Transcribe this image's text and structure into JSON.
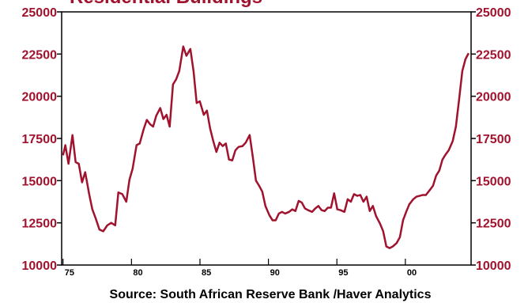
{
  "chart_data": {
    "type": "line",
    "title": "Residential Buildings",
    "source": "Source:  South African Reserve Bank /Haver Analytics",
    "color": "#a0122d",
    "xlim": [
      1974.9,
      2004.8
    ],
    "xticks": [
      {
        "value": 1975,
        "label": "75"
      },
      {
        "value": 1980,
        "label": "80"
      },
      {
        "value": 1985,
        "label": "85"
      },
      {
        "value": 1990,
        "label": "90"
      },
      {
        "value": 1995,
        "label": "95"
      },
      {
        "value": 2000,
        "label": "00"
      }
    ],
    "ylim": [
      10000,
      25000
    ],
    "yticks": [
      10000,
      12500,
      15000,
      17500,
      20000,
      22500,
      25000
    ],
    "right_axis": true,
    "x": [
      1975.0,
      1975.17,
      1975.4,
      1975.69,
      1975.92,
      1976.15,
      1976.39,
      1976.62,
      1976.91,
      1977.14,
      1977.37,
      1977.66,
      1977.94,
      1978.23,
      1978.52,
      1978.81,
      1979.04,
      1979.33,
      1979.62,
      1979.85,
      1980.08,
      1980.37,
      1980.6,
      1980.89,
      1981.12,
      1981.35,
      1981.58,
      1981.81,
      1982.1,
      1982.33,
      1982.56,
      1982.79,
      1983.03,
      1983.26,
      1983.49,
      1983.78,
      1984.01,
      1984.3,
      1984.53,
      1984.76,
      1984.99,
      1985.28,
      1985.51,
      1985.74,
      1985.97,
      1986.2,
      1986.43,
      1986.66,
      1986.89,
      1987.12,
      1987.36,
      1987.59,
      1987.82,
      1988.11,
      1988.34,
      1988.63,
      1988.86,
      1989.09,
      1989.32,
      1989.55,
      1989.78,
      1990.07,
      1990.3,
      1990.53,
      1990.76,
      1990.99,
      1991.22,
      1991.51,
      1991.74,
      1991.97,
      1992.21,
      1992.44,
      1992.67,
      1992.9,
      1993.19,
      1993.42,
      1993.65,
      1993.88,
      1994.11,
      1994.34,
      1994.57,
      1994.8,
      1995.03,
      1995.27,
      1995.55,
      1995.79,
      1996.02,
      1996.25,
      1996.48,
      1996.71,
      1996.94,
      1997.17,
      1997.4,
      1997.63,
      1997.86,
      1998.15,
      1998.38,
      1998.61,
      1998.85,
      1999.08,
      1999.36,
      1999.6,
      1999.83,
      2000.06,
      2000.29,
      2000.58,
      2000.81,
      2001.04,
      2001.27,
      2001.5,
      2001.79,
      2002.02,
      2002.25,
      2002.48,
      2002.71,
      2002.94,
      2003.17,
      2003.46,
      2003.69,
      2003.93,
      2004.16,
      2004.39,
      2004.62
    ],
    "values": [
      16500,
      17100,
      16000,
      17700,
      16100,
      16000,
      14900,
      15500,
      14200,
      13300,
      12800,
      12100,
      12000,
      12350,
      12500,
      12350,
      14300,
      14200,
      13750,
      15050,
      15700,
      17100,
      17200,
      18050,
      18600,
      18350,
      18200,
      18850,
      19300,
      18650,
      18900,
      18200,
      20700,
      21000,
      21500,
      22950,
      22400,
      22800,
      21500,
      19600,
      19700,
      18900,
      19150,
      18100,
      17350,
      16700,
      17250,
      17050,
      17200,
      16250,
      16200,
      16800,
      17000,
      17050,
      17250,
      17700,
      16400,
      15000,
      14700,
      14350,
      13500,
      12950,
      12650,
      12650,
      13050,
      13150,
      13050,
      13150,
      13300,
      13200,
      13800,
      13700,
      13350,
      13250,
      13150,
      13350,
      13500,
      13250,
      13200,
      13400,
      13400,
      14250,
      13300,
      13250,
      13150,
      13900,
      13750,
      14200,
      14100,
      14150,
      13750,
      14050,
      13200,
      13500,
      12900,
      12450,
      12000,
      11100,
      11000,
      11100,
      11300,
      11650,
      12650,
      13150,
      13600,
      13900,
      14050,
      14100,
      14150,
      14150,
      14450,
      14700,
      15300,
      15600,
      16250,
      16550,
      16800,
      17350,
      18200,
      19850,
      21500,
      22200,
      22550
    ]
  }
}
